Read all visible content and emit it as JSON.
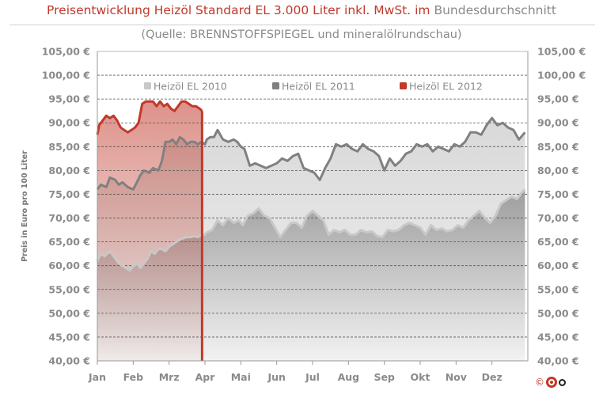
{
  "title": {
    "part1": "Preisentwicklung Heizöl Standard EL 3.000 Liter inkl. MwSt. im",
    "part2": "Bundesdurchschnitt"
  },
  "subtitle": "(Quelle: BRENNSTOFFSPIEGEL  und mineralölrundschau)",
  "copyright": "©",
  "logo_icon": "cesio-logo-icon",
  "chart_data": {
    "type": "area",
    "title": "Preisentwicklung Heizöl Standard EL 3.000 Liter inkl. MwSt. im Bundesdurchschnitt",
    "ylabel": "Preis in Euro pro 100 Liter",
    "xlabel": "",
    "ylim": [
      40,
      105
    ],
    "xlim": [
      0,
      12
    ],
    "yticks": [
      40,
      45,
      50,
      55,
      60,
      65,
      70,
      75,
      80,
      85,
      90,
      95,
      100,
      105
    ],
    "ytick_labels": [
      "40,00 €",
      "45,00 €",
      "50,00 €",
      "55,00 €",
      "60,00 €",
      "65,00 €",
      "70,00 €",
      "75,00 €",
      "80,00 €",
      "85,00 €",
      "90,00 €",
      "95,00 €",
      "100,00 €",
      "105,00 €"
    ],
    "categories": [
      "Jan",
      "Feb",
      "Mrz",
      "Apr",
      "Mai",
      "Jun",
      "Jul",
      "Aug",
      "Sep",
      "Okt",
      "Nov",
      "Dez"
    ],
    "grid": "horizontal-dashed",
    "legend_position": "top",
    "series": [
      {
        "name": "Heizöl EL 2010",
        "color": "#c8c8c8",
        "x": [
          0.0,
          0.1,
          0.2,
          0.35,
          0.5,
          0.6,
          0.7,
          0.8,
          0.9,
          1.0,
          1.1,
          1.2,
          1.3,
          1.4,
          1.5,
          1.6,
          1.7,
          1.8,
          1.9,
          2.0,
          2.1,
          2.2,
          2.3,
          2.4,
          2.5,
          2.6,
          2.7,
          2.8,
          2.9,
          3.0,
          3.05,
          3.2,
          3.35,
          3.5,
          3.65,
          3.8,
          3.95,
          4.05,
          4.2,
          4.35,
          4.5,
          4.65,
          4.8,
          4.95,
          5.1,
          5.25,
          5.4,
          5.55,
          5.7,
          5.85,
          6.0,
          6.15,
          6.3,
          6.45,
          6.6,
          6.75,
          6.9,
          7.05,
          7.2,
          7.35,
          7.5,
          7.65,
          7.8,
          7.95,
          8.1,
          8.25,
          8.4,
          8.55,
          8.7,
          8.85,
          9.0,
          9.15,
          9.3,
          9.45,
          9.6,
          9.75,
          9.9,
          10.05,
          10.2,
          10.35,
          10.5,
          10.65,
          10.8,
          10.95,
          11.1,
          11.25,
          11.4,
          11.55,
          11.7,
          11.85,
          11.92
        ],
        "values": [
          61.0,
          62.5,
          62.0,
          63.0,
          61.5,
          60.5,
          60.0,
          59.5,
          59.0,
          59.8,
          60.5,
          59.5,
          60.5,
          61.5,
          63.0,
          62.5,
          63.5,
          63.5,
          63.0,
          64.0,
          64.5,
          65.0,
          65.5,
          65.8,
          66.0,
          66.0,
          66.2,
          66.0,
          66.5,
          66.5,
          67.0,
          67.5,
          69.5,
          68.5,
          70.0,
          69.0,
          69.5,
          68.5,
          70.5,
          71.0,
          72.0,
          70.5,
          70.0,
          68.0,
          66.0,
          67.5,
          69.0,
          69.0,
          68.0,
          70.5,
          71.5,
          70.5,
          69.5,
          66.5,
          67.5,
          67.0,
          67.5,
          66.5,
          66.5,
          67.5,
          67.0,
          67.2,
          66.2,
          66.0,
          67.5,
          67.2,
          67.5,
          68.5,
          69.0,
          68.5,
          68.0,
          66.5,
          68.5,
          67.5,
          67.8,
          67.2,
          67.5,
          68.5,
          68.0,
          69.5,
          70.5,
          71.5,
          70.0,
          69.0,
          70.5,
          73.0,
          73.8,
          74.5,
          74.0,
          75.5,
          76.0
        ]
      },
      {
        "name": "Heizöl EL 2011",
        "color": "#808080",
        "x": [
          0.0,
          0.1,
          0.25,
          0.35,
          0.5,
          0.6,
          0.7,
          0.85,
          1.0,
          1.1,
          1.2,
          1.3,
          1.45,
          1.55,
          1.7,
          1.8,
          1.9,
          2.0,
          2.1,
          2.2,
          2.3,
          2.4,
          2.5,
          2.6,
          2.7,
          2.8,
          2.9,
          3.0,
          3.05,
          3.15,
          3.25,
          3.35,
          3.5,
          3.65,
          3.8,
          3.9,
          4.0,
          4.1,
          4.25,
          4.4,
          4.55,
          4.7,
          4.85,
          5.0,
          5.15,
          5.3,
          5.45,
          5.6,
          5.75,
          5.9,
          6.05,
          6.2,
          6.35,
          6.5,
          6.65,
          6.8,
          6.95,
          7.1,
          7.25,
          7.4,
          7.55,
          7.7,
          7.85,
          8.0,
          8.15,
          8.3,
          8.45,
          8.6,
          8.75,
          8.9,
          9.05,
          9.2,
          9.35,
          9.5,
          9.65,
          9.8,
          9.95,
          10.1,
          10.25,
          10.4,
          10.55,
          10.7,
          10.85,
          11.0,
          11.15,
          11.3,
          11.45,
          11.6,
          11.75,
          11.92
        ],
        "values": [
          76.0,
          77.0,
          76.5,
          78.5,
          78.0,
          77.0,
          77.5,
          76.5,
          76.0,
          77.5,
          79.0,
          80.0,
          79.5,
          80.5,
          80.0,
          82.0,
          86.0,
          86.0,
          86.5,
          85.5,
          87.0,
          86.5,
          85.5,
          86.0,
          86.0,
          85.5,
          86.0,
          85.5,
          86.5,
          87.0,
          87.0,
          88.5,
          86.5,
          86.0,
          86.5,
          86.0,
          85.0,
          84.5,
          81.0,
          81.5,
          81.0,
          80.5,
          81.0,
          81.5,
          82.5,
          82.0,
          83.0,
          83.5,
          80.5,
          80.0,
          79.5,
          78.0,
          80.5,
          82.5,
          85.5,
          85.0,
          85.5,
          84.5,
          84.0,
          85.5,
          84.5,
          84.0,
          83.0,
          80.0,
          82.5,
          81.0,
          82.0,
          83.5,
          84.0,
          85.5,
          85.0,
          85.5,
          84.0,
          85.0,
          84.5,
          84.0,
          85.5,
          85.0,
          86.0,
          88.0,
          88.0,
          87.5,
          89.5,
          91.0,
          89.5,
          90.0,
          89.0,
          88.5,
          86.5,
          88.0
        ]
      },
      {
        "name": "Heizöl EL 2012",
        "color": "#c0392b",
        "x": [
          0.0,
          0.05,
          0.15,
          0.25,
          0.35,
          0.45,
          0.55,
          0.65,
          0.75,
          0.85,
          0.95,
          1.05,
          1.15,
          1.25,
          1.35,
          1.45,
          1.55,
          1.65,
          1.75,
          1.85,
          1.95,
          2.05,
          2.15,
          2.25,
          2.35,
          2.45,
          2.55,
          2.65,
          2.75,
          2.85,
          2.92
        ],
        "values": [
          87.5,
          89.5,
          90.5,
          91.5,
          91.0,
          91.5,
          90.5,
          89.0,
          88.5,
          88.0,
          88.5,
          89.0,
          90.0,
          94.0,
          94.5,
          94.5,
          94.5,
          93.5,
          94.5,
          93.5,
          94.0,
          93.0,
          92.5,
          93.5,
          94.5,
          94.5,
          94.0,
          93.5,
          93.5,
          93.0,
          92.5
        ]
      }
    ]
  }
}
